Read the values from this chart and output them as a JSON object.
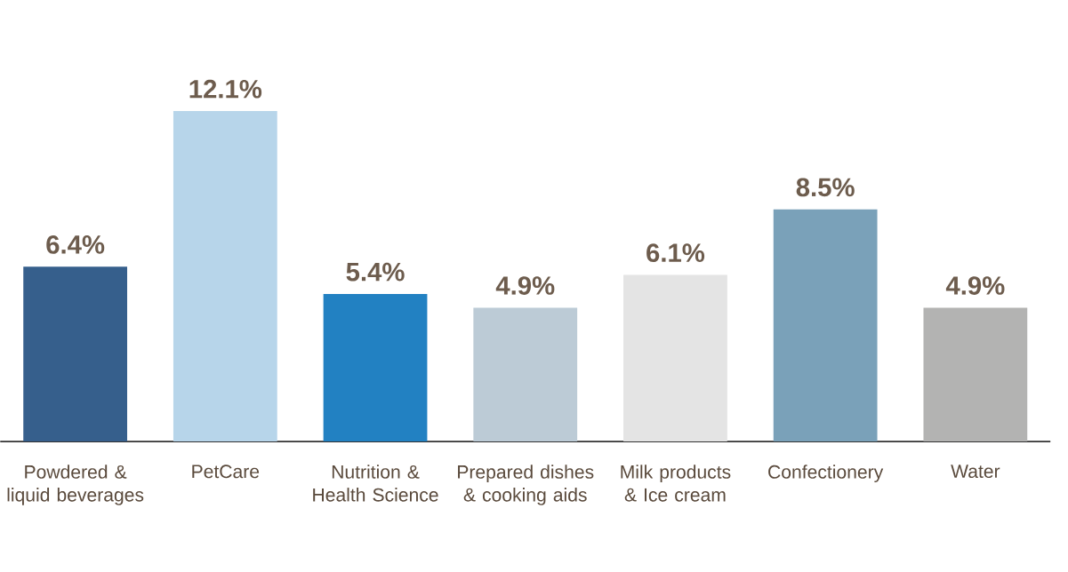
{
  "chart_data": {
    "type": "bar",
    "categories": [
      "Powdered & liquid beverages",
      "PetCare",
      "Nutrition & Health Science",
      "Prepared dishes & cooking aids",
      "Milk products & Ice cream",
      "Confectionery",
      "Water"
    ],
    "values": [
      6.4,
      12.1,
      5.4,
      4.9,
      6.1,
      8.5,
      4.9
    ],
    "value_labels": [
      "6.4%",
      "12.1%",
      "5.4%",
      "4.9%",
      "6.1%",
      "8.5%",
      "4.9%"
    ],
    "colors": [
      "#365f8c",
      "#b7d5ea",
      "#2281c2",
      "#bccbd6",
      "#e4e4e4",
      "#7aa1b9",
      "#b3b3b2"
    ]
  }
}
